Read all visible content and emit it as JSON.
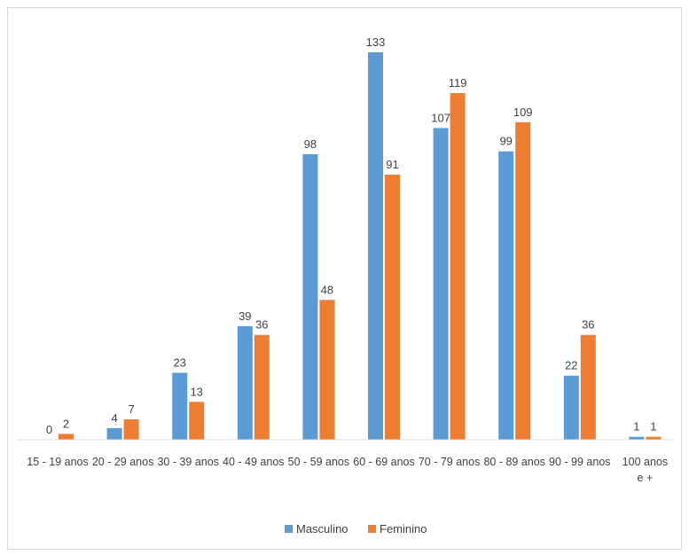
{
  "chart_data": {
    "type": "bar",
    "categories": [
      [
        "15 - 19 anos"
      ],
      [
        "20 - 29 anos"
      ],
      [
        "30 - 39 anos"
      ],
      [
        "40 - 49 anos"
      ],
      [
        "50 - 59 anos"
      ],
      [
        "60 - 69 anos"
      ],
      [
        "70 - 79 anos"
      ],
      [
        "80 - 89 anos"
      ],
      [
        "90 - 99 anos"
      ],
      [
        "100 anos",
        "e +"
      ]
    ],
    "series": [
      {
        "name": "Masculino",
        "color": "#5b9bd5",
        "values": [
          0,
          4,
          23,
          39,
          98,
          133,
          107,
          99,
          22,
          1
        ]
      },
      {
        "name": "Feminino",
        "color": "#ed7d31",
        "values": [
          2,
          7,
          13,
          36,
          48,
          91,
          119,
          109,
          36,
          1
        ]
      }
    ],
    "ylim": [
      0,
      133
    ],
    "grid": false,
    "legend_position": "bottom"
  }
}
